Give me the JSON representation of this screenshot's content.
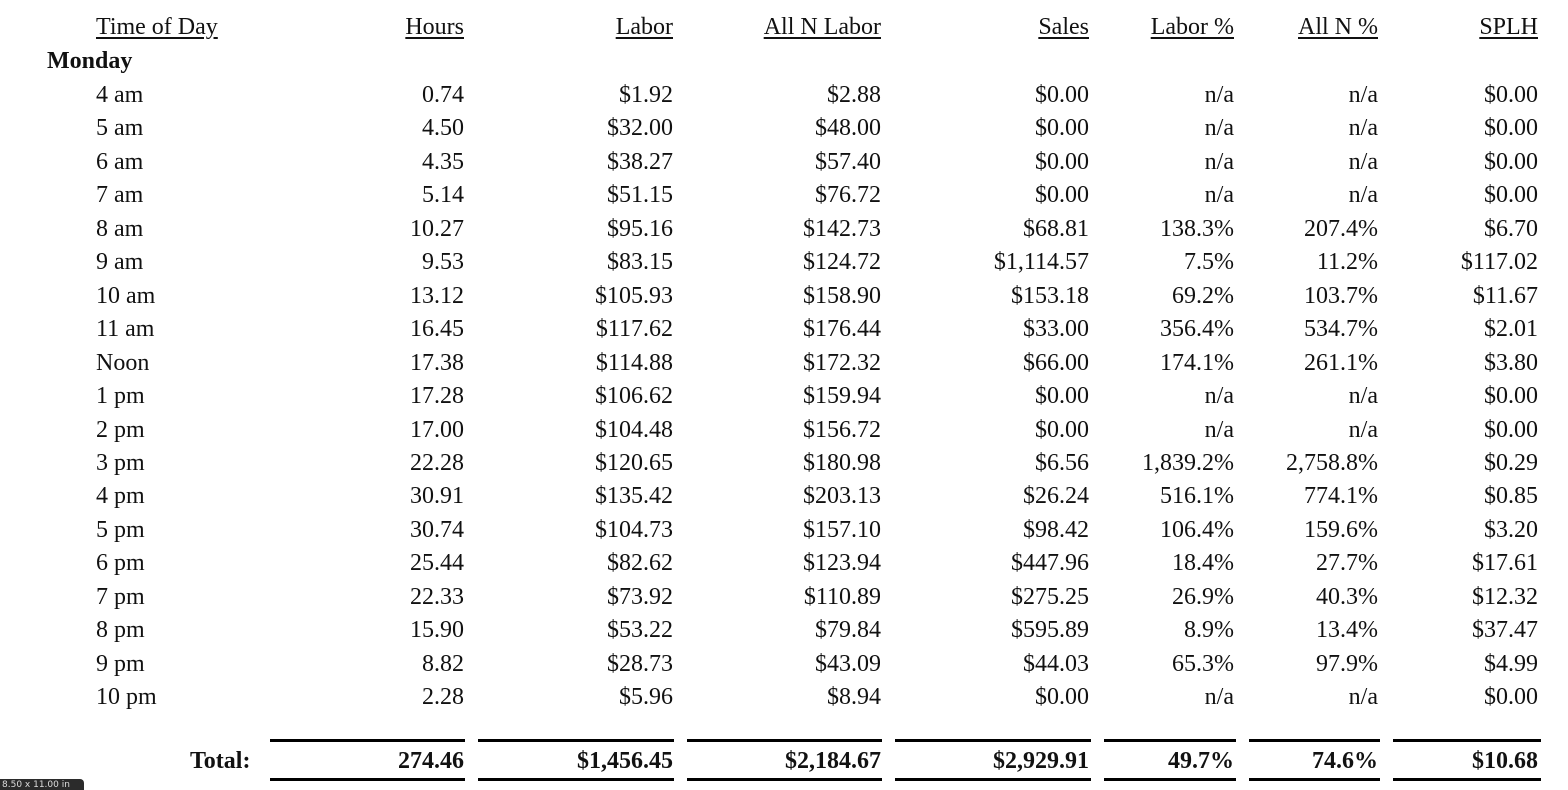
{
  "headers": [
    "Time of Day",
    "Hours",
    "Labor",
    "All N Labor",
    "Sales",
    "Labor %",
    "All N %",
    "SPLH"
  ],
  "day": "Monday",
  "rows": [
    [
      "4 am",
      "0.74",
      "$1.92",
      "$2.88",
      "$0.00",
      "n/a",
      "n/a",
      "$0.00"
    ],
    [
      "5 am",
      "4.50",
      "$32.00",
      "$48.00",
      "$0.00",
      "n/a",
      "n/a",
      "$0.00"
    ],
    [
      "6 am",
      "4.35",
      "$38.27",
      "$57.40",
      "$0.00",
      "n/a",
      "n/a",
      "$0.00"
    ],
    [
      "7 am",
      "5.14",
      "$51.15",
      "$76.72",
      "$0.00",
      "n/a",
      "n/a",
      "$0.00"
    ],
    [
      "8 am",
      "10.27",
      "$95.16",
      "$142.73",
      "$68.81",
      "138.3%",
      "207.4%",
      "$6.70"
    ],
    [
      "9 am",
      "9.53",
      "$83.15",
      "$124.72",
      "$1,114.57",
      "7.5%",
      "11.2%",
      "$117.02"
    ],
    [
      "10 am",
      "13.12",
      "$105.93",
      "$158.90",
      "$153.18",
      "69.2%",
      "103.7%",
      "$11.67"
    ],
    [
      "11 am",
      "16.45",
      "$117.62",
      "$176.44",
      "$33.00",
      "356.4%",
      "534.7%",
      "$2.01"
    ],
    [
      "Noon",
      "17.38",
      "$114.88",
      "$172.32",
      "$66.00",
      "174.1%",
      "261.1%",
      "$3.80"
    ],
    [
      "1 pm",
      "17.28",
      "$106.62",
      "$159.94",
      "$0.00",
      "n/a",
      "n/a",
      "$0.00"
    ],
    [
      "2 pm",
      "17.00",
      "$104.48",
      "$156.72",
      "$0.00",
      "n/a",
      "n/a",
      "$0.00"
    ],
    [
      "3 pm",
      "22.28",
      "$120.65",
      "$180.98",
      "$6.56",
      "1,839.2%",
      "2,758.8%",
      "$0.29"
    ],
    [
      "4 pm",
      "30.91",
      "$135.42",
      "$203.13",
      "$26.24",
      "516.1%",
      "774.1%",
      "$0.85"
    ],
    [
      "5 pm",
      "30.74",
      "$104.73",
      "$157.10",
      "$98.42",
      "106.4%",
      "159.6%",
      "$3.20"
    ],
    [
      "6 pm",
      "25.44",
      "$82.62",
      "$123.94",
      "$447.96",
      "18.4%",
      "27.7%",
      "$17.61"
    ],
    [
      "7 pm",
      "22.33",
      "$73.92",
      "$110.89",
      "$275.25",
      "26.9%",
      "40.3%",
      "$12.32"
    ],
    [
      "8 pm",
      "15.90",
      "$53.22",
      "$79.84",
      "$595.89",
      "8.9%",
      "13.4%",
      "$37.47"
    ],
    [
      "9 pm",
      "8.82",
      "$28.73",
      "$43.09",
      "$44.03",
      "65.3%",
      "97.9%",
      "$4.99"
    ],
    [
      "10 pm",
      "2.28",
      "$5.96",
      "$8.94",
      "$0.00",
      "n/a",
      "n/a",
      "$0.00"
    ]
  ],
  "total": {
    "label": "Total:",
    "values": [
      "274.46",
      "$1,456.45",
      "$2,184.67",
      "$2,929.91",
      "49.7%",
      "74.6%",
      "$10.68"
    ]
  },
  "page_size_label": "8.50 x 11.00 in"
}
